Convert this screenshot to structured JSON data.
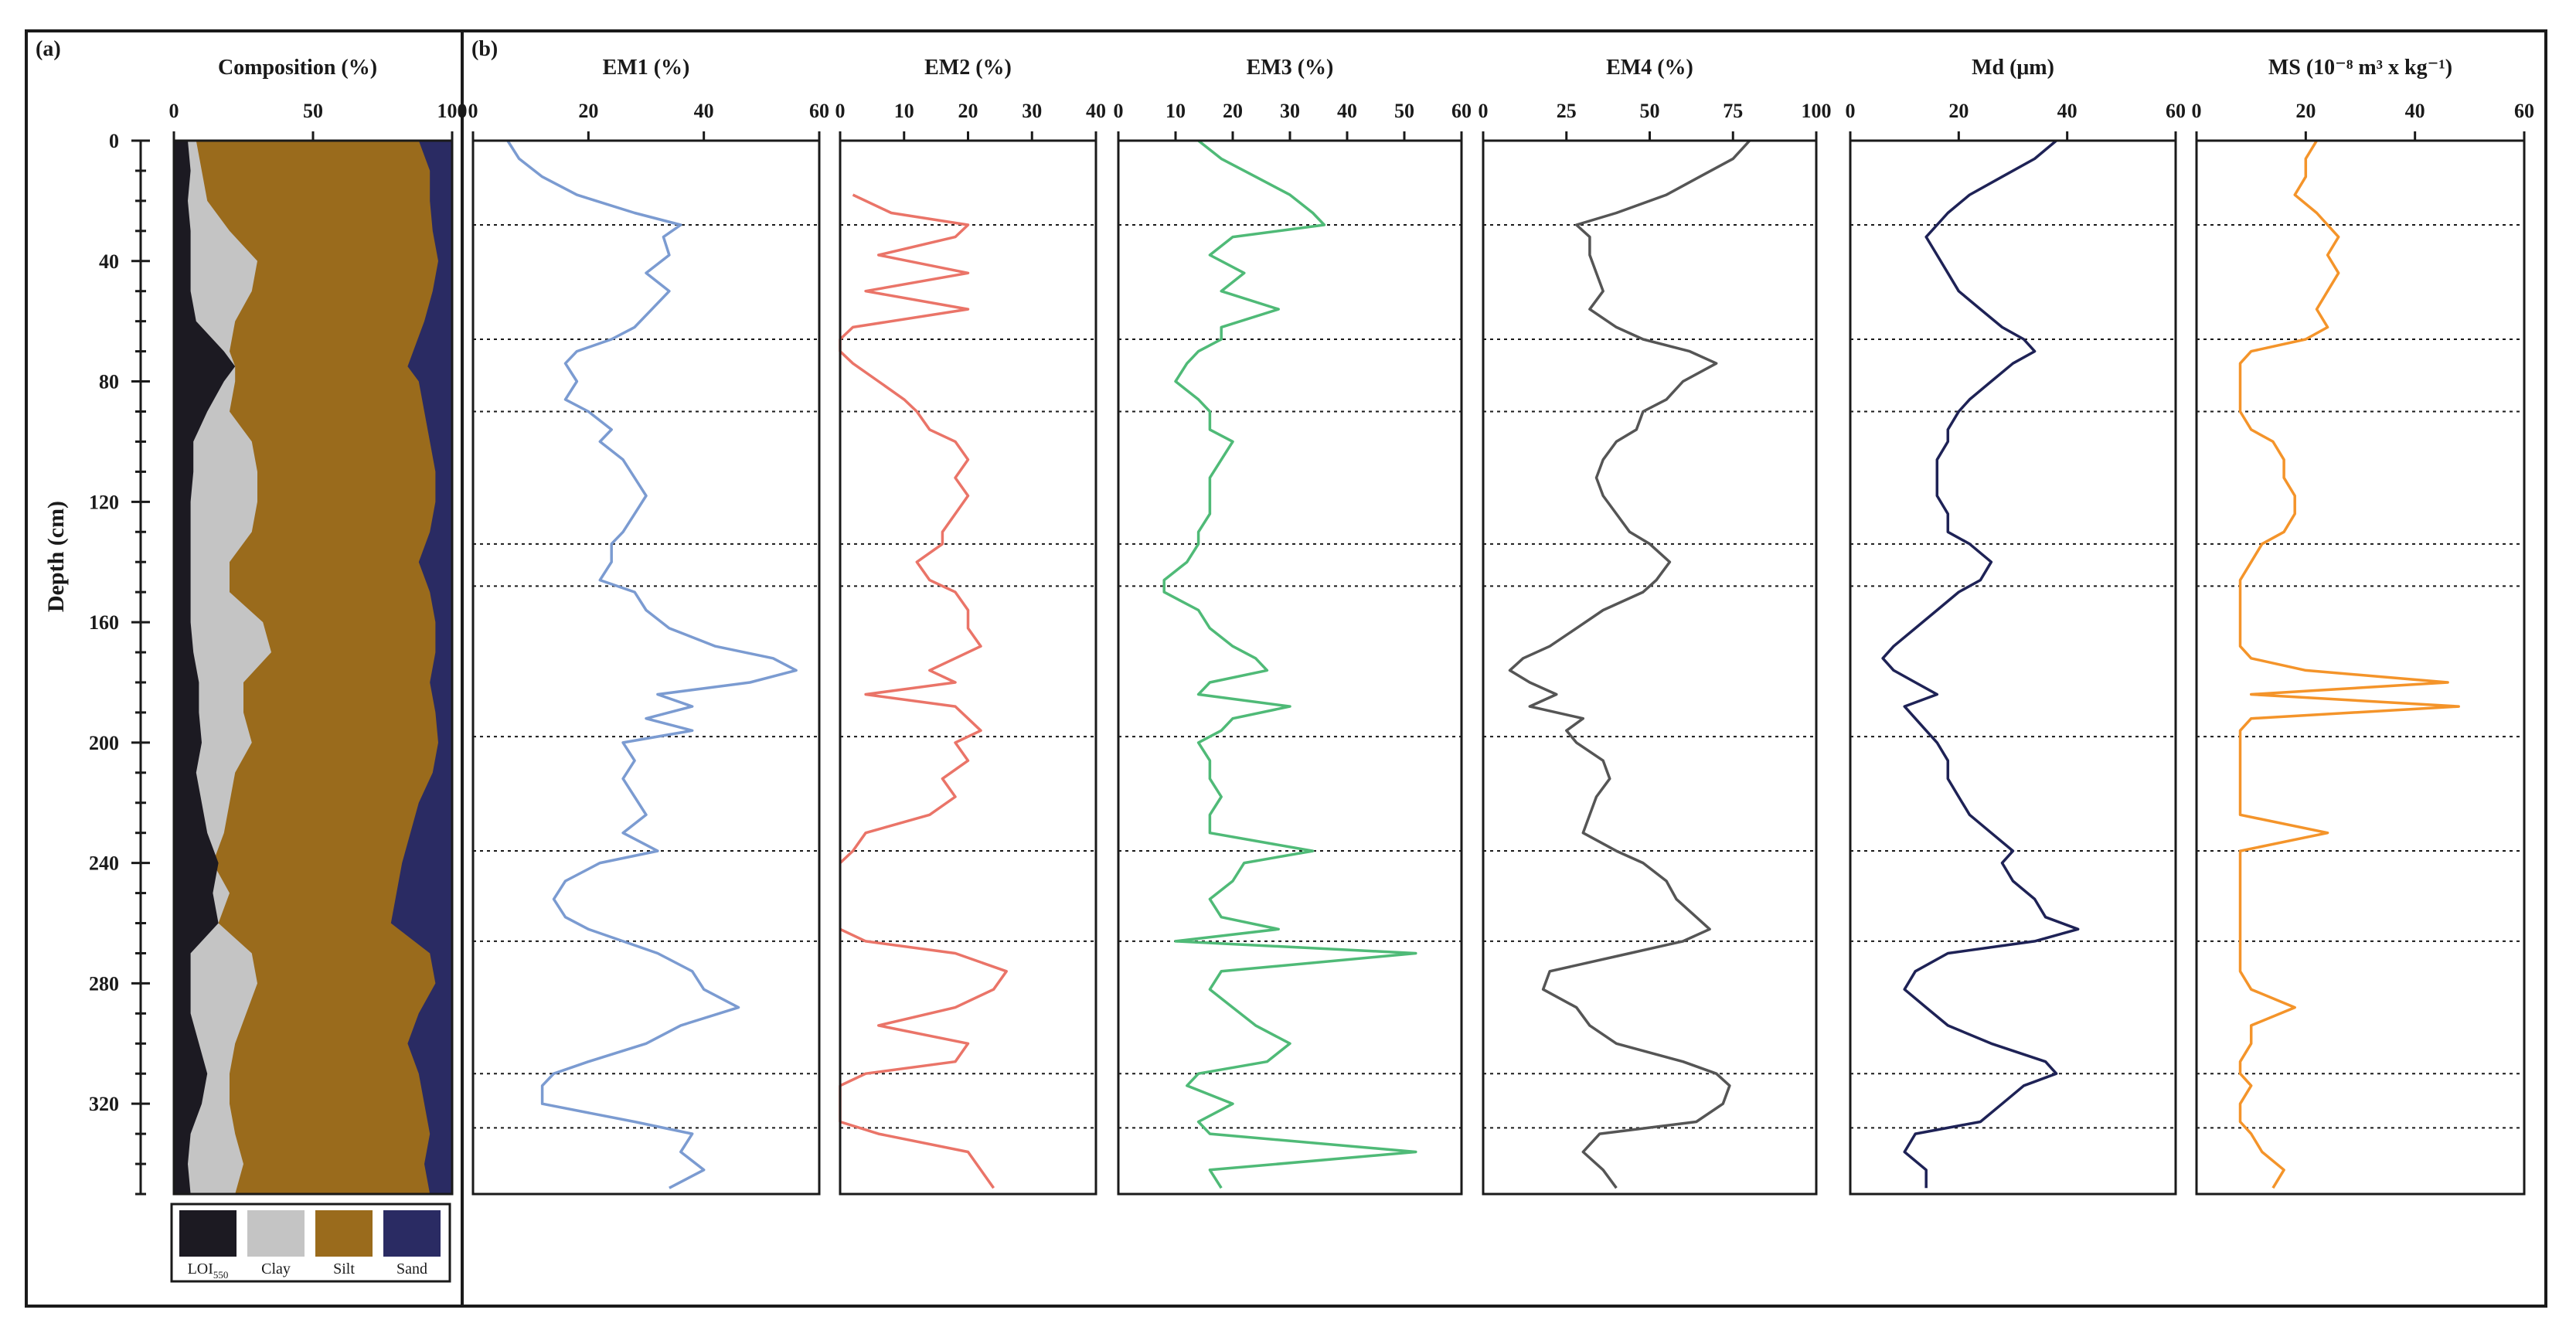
{
  "chart_data": {
    "type": "line",
    "depth_axis": {
      "label": "Depth (cm)",
      "range": [
        0,
        350
      ],
      "ticks": [
        0,
        40,
        80,
        120,
        160,
        200,
        240,
        280,
        320
      ]
    },
    "boundaries_cm": [
      28,
      66,
      90,
      134,
      148,
      198,
      236,
      266,
      310,
      328
    ],
    "composition": {
      "panel_label": "(a)",
      "title": "Composition (%)",
      "xlim": [
        0,
        100
      ],
      "x_ticks": [
        0,
        50,
        100
      ],
      "depth_cm": [
        0,
        10,
        20,
        30,
        40,
        50,
        60,
        70,
        75,
        80,
        90,
        100,
        110,
        120,
        130,
        140,
        150,
        160,
        170,
        180,
        190,
        200,
        210,
        220,
        230,
        240,
        250,
        260,
        270,
        280,
        290,
        300,
        310,
        320,
        330,
        340,
        350
      ],
      "series": [
        {
          "name": "LOI550",
          "color": "#1c1a22",
          "cumulative": [
            5,
            6,
            5,
            6,
            6,
            6,
            8,
            18,
            22,
            18,
            12,
            7,
            7,
            6,
            6,
            6,
            6,
            6,
            7,
            9,
            9,
            10,
            8,
            10,
            12,
            16,
            14,
            16,
            6,
            6,
            6,
            9,
            12,
            10,
            6,
            5,
            6
          ]
        },
        {
          "name": "Clay",
          "color": "#c4c4c4",
          "cumulative": [
            8,
            10,
            12,
            20,
            30,
            28,
            22,
            20,
            22,
            22,
            20,
            28,
            30,
            30,
            28,
            20,
            20,
            32,
            35,
            25,
            25,
            28,
            22,
            20,
            18,
            14,
            20,
            16,
            28,
            30,
            26,
            22,
            20,
            20,
            22,
            25,
            22
          ]
        },
        {
          "name": "Silt",
          "color": "#9a6b1c",
          "cumulative": [
            88,
            92,
            92,
            93,
            95,
            93,
            90,
            86,
            84,
            88,
            90,
            92,
            94,
            94,
            92,
            88,
            92,
            94,
            94,
            92,
            94,
            95,
            93,
            88,
            85,
            82,
            80,
            78,
            92,
            94,
            88,
            84,
            88,
            90,
            92,
            90,
            92
          ]
        },
        {
          "name": "Sand",
          "color": "#2a2b63",
          "cumulative": [
            100,
            100,
            100,
            100,
            100,
            100,
            100,
            100,
            100,
            100,
            100,
            100,
            100,
            100,
            100,
            100,
            100,
            100,
            100,
            100,
            100,
            100,
            100,
            100,
            100,
            100,
            100,
            100,
            100,
            100,
            100,
            100,
            100,
            100,
            100,
            100,
            100
          ]
        }
      ],
      "legend": [
        "LOI550",
        "Clay",
        "Silt",
        "Sand"
      ]
    },
    "profiles": {
      "panel_label": "(b)",
      "depth_cm": [
        0,
        6,
        12,
        18,
        24,
        28,
        32,
        38,
        44,
        50,
        56,
        62,
        66,
        70,
        74,
        80,
        86,
        90,
        96,
        100,
        106,
        112,
        118,
        124,
        130,
        134,
        140,
        146,
        150,
        156,
        162,
        168,
        172,
        176,
        180,
        184,
        188,
        192,
        196,
        200,
        206,
        212,
        218,
        224,
        230,
        236,
        240,
        246,
        252,
        258,
        262,
        266,
        270,
        276,
        282,
        288,
        294,
        300,
        306,
        310,
        314,
        320,
        326,
        330,
        336,
        342,
        348
      ],
      "series": [
        {
          "name": "EM1 (%)",
          "color": "#7b9bd1",
          "xlim": [
            0,
            60
          ],
          "ticks": [
            0,
            20,
            40,
            60
          ],
          "values": [
            6,
            8,
            12,
            18,
            28,
            36,
            33,
            34,
            30,
            34,
            31,
            28,
            24,
            18,
            16,
            18,
            16,
            20,
            24,
            22,
            26,
            28,
            30,
            28,
            26,
            24,
            24,
            22,
            28,
            30,
            34,
            42,
            52,
            56,
            48,
            32,
            38,
            30,
            38,
            26,
            28,
            26,
            28,
            30,
            26,
            32,
            22,
            16,
            14,
            16,
            20,
            26,
            32,
            38,
            40,
            46,
            36,
            30,
            20,
            14,
            12,
            12,
            28,
            38,
            36,
            40,
            34
          ]
        },
        {
          "name": "EM2 (%)",
          "color": "#ea7468",
          "xlim": [
            0,
            40
          ],
          "ticks": [
            0,
            10,
            20,
            30,
            40
          ],
          "values": [
            null,
            null,
            null,
            2,
            8,
            20,
            18,
            6,
            20,
            4,
            20,
            2,
            0,
            0,
            2,
            6,
            10,
            12,
            14,
            18,
            20,
            18,
            20,
            18,
            16,
            16,
            12,
            14,
            18,
            20,
            20,
            22,
            18,
            14,
            18,
            4,
            18,
            20,
            22,
            18,
            20,
            16,
            18,
            14,
            4,
            2,
            0,
            null,
            null,
            null,
            0,
            4,
            18,
            26,
            24,
            18,
            6,
            20,
            18,
            4,
            0,
            0,
            0,
            6,
            20,
            22,
            24
          ]
        },
        {
          "name": "EM3 (%)",
          "color": "#4fba77",
          "xlim": [
            0,
            60
          ],
          "ticks": [
            0,
            10,
            20,
            30,
            40,
            50,
            60
          ],
          "values": [
            14,
            18,
            24,
            30,
            34,
            36,
            20,
            16,
            22,
            18,
            28,
            18,
            18,
            14,
            12,
            10,
            14,
            16,
            16,
            20,
            18,
            16,
            16,
            16,
            14,
            14,
            12,
            8,
            8,
            14,
            16,
            20,
            24,
            26,
            16,
            14,
            30,
            20,
            18,
            14,
            16,
            16,
            18,
            16,
            16,
            34,
            22,
            20,
            16,
            18,
            28,
            10,
            52,
            18,
            16,
            20,
            24,
            30,
            26,
            14,
            12,
            20,
            14,
            16,
            52,
            16,
            18
          ]
        },
        {
          "name": "EM4 (%)",
          "color": "#555555",
          "xlim": [
            0,
            100
          ],
          "ticks": [
            0,
            25,
            50,
            75,
            100
          ],
          "values": [
            80,
            75,
            65,
            55,
            40,
            28,
            32,
            32,
            34,
            36,
            32,
            40,
            48,
            62,
            70,
            60,
            55,
            48,
            46,
            40,
            36,
            34,
            36,
            40,
            44,
            50,
            56,
            52,
            48,
            36,
            28,
            20,
            12,
            8,
            14,
            22,
            14,
            30,
            25,
            28,
            36,
            38,
            34,
            32,
            30,
            40,
            48,
            55,
            58,
            64,
            68,
            60,
            44,
            20,
            18,
            28,
            32,
            40,
            60,
            70,
            74,
            72,
            64,
            35,
            30,
            36,
            40
          ]
        },
        {
          "name": "Md (μm)",
          "color": "#1e2256",
          "xlim": [
            0,
            60
          ],
          "ticks": [
            0,
            20,
            40,
            60
          ],
          "values": [
            38,
            34,
            28,
            22,
            18,
            16,
            14,
            16,
            18,
            20,
            24,
            28,
            32,
            34,
            30,
            26,
            22,
            20,
            18,
            18,
            16,
            16,
            16,
            18,
            18,
            22,
            26,
            24,
            20,
            16,
            12,
            8,
            6,
            8,
            12,
            16,
            10,
            12,
            14,
            16,
            18,
            18,
            20,
            22,
            26,
            30,
            28,
            30,
            34,
            36,
            42,
            34,
            18,
            12,
            10,
            14,
            18,
            26,
            36,
            38,
            32,
            28,
            24,
            12,
            10,
            14,
            14
          ]
        },
        {
          "name": "MS (10⁻⁸ m³ x kg⁻¹)",
          "color": "#f4942a",
          "xlim": [
            0,
            60
          ],
          "ticks": [
            0,
            20,
            40,
            60
          ],
          "values": [
            22,
            20,
            20,
            18,
            22,
            24,
            26,
            24,
            26,
            24,
            22,
            24,
            20,
            10,
            8,
            8,
            8,
            8,
            10,
            14,
            16,
            16,
            18,
            18,
            16,
            12,
            10,
            8,
            8,
            8,
            8,
            8,
            10,
            20,
            46,
            10,
            48,
            10,
            8,
            8,
            8,
            8,
            8,
            8,
            24,
            8,
            8,
            8,
            8,
            8,
            8,
            8,
            8,
            8,
            10,
            18,
            10,
            10,
            8,
            8,
            10,
            8,
            8,
            10,
            12,
            16,
            14
          ]
        }
      ]
    }
  }
}
